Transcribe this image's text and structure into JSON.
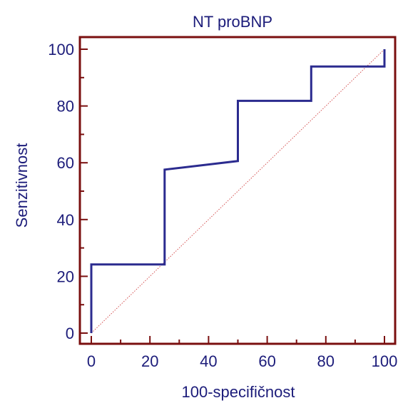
{
  "chart_data": {
    "type": "line",
    "title": "NT proBNP",
    "xlabel": "100-specifičnost",
    "ylabel": "Senzitivnost",
    "xlim": [
      0,
      100
    ],
    "ylim": [
      0,
      100
    ],
    "x_ticks": [
      "0",
      "20",
      "40",
      "60",
      "80",
      "100"
    ],
    "y_ticks": [
      "0",
      "20",
      "40",
      "60",
      "80",
      "100"
    ],
    "grid": false,
    "series": [
      {
        "style": "step",
        "color": "#2b2b8f",
        "points": [
          [
            0,
            0
          ],
          [
            0,
            24.2
          ],
          [
            25,
            24.2
          ],
          [
            25,
            57.6
          ],
          [
            50,
            60.6
          ],
          [
            50,
            81.8
          ],
          [
            75,
            81.8
          ],
          [
            75,
            93.9
          ],
          [
            100,
            93.9
          ],
          [
            100,
            100
          ]
        ]
      },
      {
        "style": "dotted",
        "color": "#d04040",
        "points": [
          [
            0,
            0
          ],
          [
            100,
            100
          ]
        ]
      }
    ]
  },
  "colors": {
    "frame": "#7a0f0f",
    "text": "#1c1c7a"
  }
}
